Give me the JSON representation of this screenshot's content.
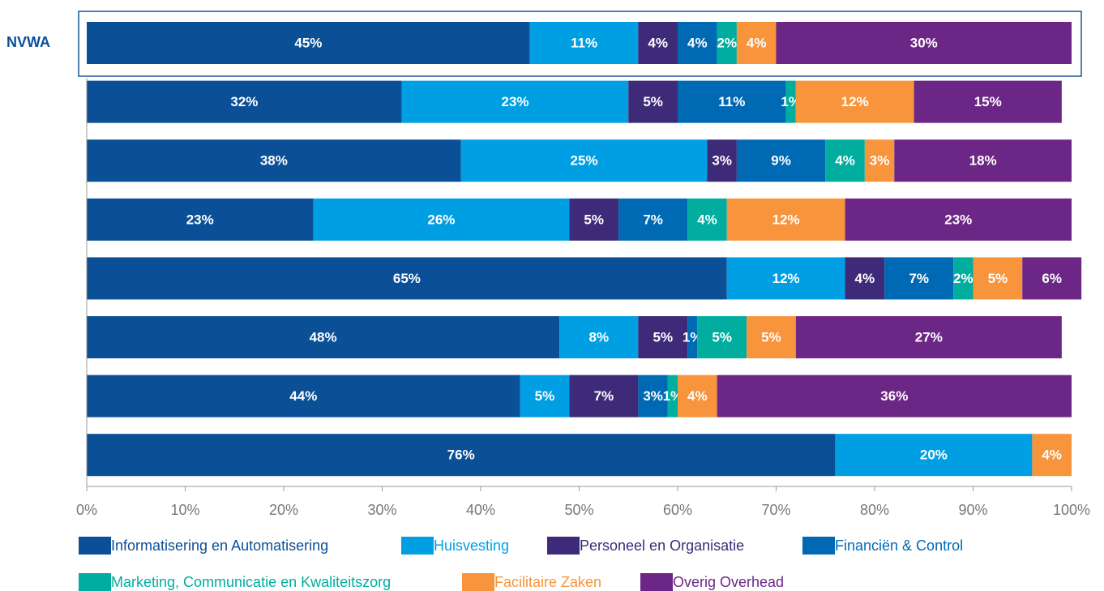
{
  "chart_data": {
    "type": "stacked_barh",
    "categories": [
      "NVWA",
      null,
      null,
      null,
      null,
      null,
      null,
      null
    ],
    "series": [
      {
        "name": "Informatisering en Automatisering",
        "color": "#0b4f96",
        "values": [
          45,
          32,
          38,
          23,
          65,
          48,
          44,
          76
        ],
        "value_labels": [
          "45%",
          "32%",
          "38%",
          "23%",
          "65%",
          "48%",
          "44%",
          "76%"
        ]
      },
      {
        "name": "Huisvesting",
        "color": "#009fe3",
        "values": [
          11,
          23,
          25,
          26,
          12,
          8,
          5,
          20
        ],
        "value_labels": [
          "11%",
          "23%",
          "25%",
          "26%",
          "12%",
          "8%",
          "5%",
          "20%"
        ]
      },
      {
        "name": "Personeel en Organisatie",
        "color": "#3d2a78",
        "values": [
          4,
          5,
          3,
          5,
          4,
          5,
          7,
          null
        ],
        "value_labels": [
          "4%",
          "5%",
          "3%",
          "5%",
          "4%",
          "5%",
          "7%",
          null
        ]
      },
      {
        "name": "Financiën & Control",
        "color": "#0069b4",
        "values": [
          4,
          11,
          9,
          7,
          7,
          1,
          3,
          null
        ],
        "value_labels": [
          "4%",
          "11%",
          "9%",
          "7%",
          "7%",
          "1%",
          "3%",
          null
        ]
      },
      {
        "name": "Marketing, Communicatie en Kwaliteitszorg",
        "color": "#00ad9f",
        "values": [
          2,
          1,
          4,
          4,
          2,
          5,
          1,
          null
        ],
        "value_labels": [
          "2%",
          "1%",
          "4%",
          "4%",
          "2%",
          "5%",
          "1%",
          null
        ]
      },
      {
        "name": "Facilitaire Zaken",
        "color": "#f7943c",
        "values": [
          4,
          12,
          3,
          12,
          5,
          5,
          4,
          4
        ],
        "value_labels": [
          "4%",
          "12%",
          "3%",
          "12%",
          "5%",
          "5%",
          "4%",
          "4%"
        ]
      },
      {
        "name": "Overig Overhead",
        "color": "#6c2786",
        "values": [
          30,
          15,
          18,
          23,
          6,
          27,
          36,
          null
        ],
        "value_labels": [
          "30%",
          "15%",
          "18%",
          "23%",
          "6%",
          "27%",
          "36%",
          null
        ]
      }
    ],
    "xlim": [
      0,
      100
    ],
    "xticks": [
      {
        "value": 0,
        "label": "0%"
      },
      {
        "value": 10,
        "label": "10%"
      },
      {
        "value": 20,
        "label": "20%"
      },
      {
        "value": 30,
        "label": "30%"
      },
      {
        "value": 40,
        "label": "40%"
      },
      {
        "value": 50,
        "label": "50%"
      },
      {
        "value": 60,
        "label": "60%"
      },
      {
        "value": 70,
        "label": "70%"
      },
      {
        "value": 80,
        "label": "80%"
      },
      {
        "value": 90,
        "label": "90%"
      },
      {
        "value": 100,
        "label": "100%"
      }
    ]
  }
}
